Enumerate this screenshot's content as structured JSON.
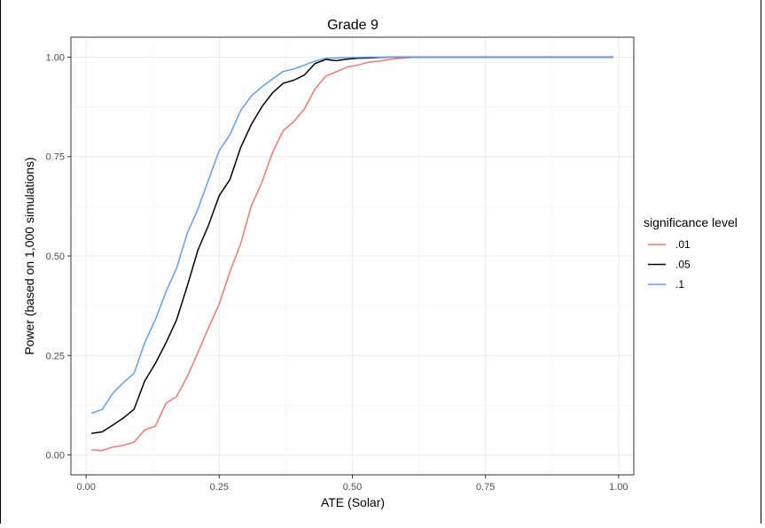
{
  "chart_data": {
    "type": "line",
    "title": "Grade 9",
    "xlabel": "ATE (Solar)",
    "ylabel": "Power (based on 1,000 simulations)",
    "xlim": [
      -0.0286,
      1.0286
    ],
    "ylim": [
      -0.05,
      1.05
    ],
    "xticks": [
      0.0,
      0.25,
      0.5,
      0.75,
      1.0
    ],
    "xtick_labels": [
      "0.00",
      "0.25",
      "0.50",
      "0.75",
      "1.00"
    ],
    "yticks": [
      0.0,
      0.25,
      0.5,
      0.75,
      1.0
    ],
    "ytick_labels": [
      "0.00",
      "0.25",
      "0.50",
      "0.75",
      "1.00"
    ],
    "grid": true,
    "legend": {
      "title": "significance level",
      "position": "right"
    },
    "x": [
      0.01,
      0.03,
      0.05,
      0.07,
      0.09,
      0.11,
      0.13,
      0.15,
      0.17,
      0.19,
      0.21,
      0.23,
      0.25,
      0.27,
      0.29,
      0.31,
      0.33,
      0.35,
      0.37,
      0.39,
      0.41,
      0.43,
      0.45,
      0.47,
      0.49,
      0.51,
      0.53,
      0.55,
      0.57,
      0.59,
      0.61,
      0.63,
      0.65,
      0.67,
      0.69,
      0.71,
      0.73,
      0.75,
      0.77,
      0.79,
      0.81,
      0.83,
      0.85,
      0.87,
      0.89,
      0.91,
      0.93,
      0.95,
      0.97,
      0.99
    ],
    "series": [
      {
        "name": ".01",
        "color": "#F8766D",
        "values": [
          0.013,
          0.011,
          0.02,
          0.024,
          0.032,
          0.063,
          0.072,
          0.13,
          0.147,
          0.197,
          0.258,
          0.32,
          0.38,
          0.46,
          0.53,
          0.625,
          0.685,
          0.76,
          0.815,
          0.838,
          0.87,
          0.92,
          0.952,
          0.963,
          0.975,
          0.98,
          0.987,
          0.99,
          0.994,
          0.997,
          0.999,
          1.0,
          1.0,
          1.0,
          1.0,
          1.0,
          1.0,
          1.0,
          1.0,
          1.0,
          1.0,
          1.0,
          1.0,
          1.0,
          1.0,
          1.0,
          1.0,
          1.0,
          1.0,
          1.0
        ]
      },
      {
        "name": ".05",
        "color": "#000000",
        "values": [
          0.054,
          0.058,
          0.075,
          0.093,
          0.115,
          0.186,
          0.23,
          0.282,
          0.34,
          0.425,
          0.515,
          0.578,
          0.652,
          0.692,
          0.772,
          0.83,
          0.875,
          0.91,
          0.934,
          0.942,
          0.955,
          0.984,
          0.994,
          0.991,
          0.995,
          0.997,
          0.998,
          0.999,
          1.0,
          1.0,
          1.0,
          1.0,
          1.0,
          1.0,
          1.0,
          1.0,
          1.0,
          1.0,
          1.0,
          1.0,
          1.0,
          1.0,
          1.0,
          1.0,
          1.0,
          1.0,
          1.0,
          1.0,
          1.0,
          1.0
        ]
      },
      {
        "name": ".1",
        "color": "#619CFF",
        "values": [
          0.105,
          0.114,
          0.155,
          0.182,
          0.205,
          0.282,
          0.34,
          0.41,
          0.47,
          0.558,
          0.618,
          0.692,
          0.765,
          0.805,
          0.865,
          0.902,
          0.925,
          0.945,
          0.964,
          0.97,
          0.98,
          0.99,
          0.997,
          0.998,
          0.999,
          0.999,
          1.0,
          1.0,
          1.0,
          1.0,
          1.0,
          1.0,
          1.0,
          1.0,
          1.0,
          1.0,
          1.0,
          1.0,
          1.0,
          1.0,
          1.0,
          1.0,
          1.0,
          1.0,
          1.0,
          1.0,
          1.0,
          1.0,
          1.0,
          1.0
        ]
      }
    ]
  }
}
